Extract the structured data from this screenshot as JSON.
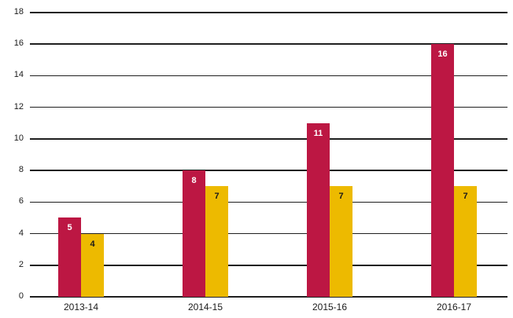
{
  "chart_data": {
    "type": "bar",
    "title": "",
    "xlabel": "",
    "ylabel": "",
    "categories": [
      "2013-14",
      "2014-15",
      "2015-16",
      "2016-17"
    ],
    "series": [
      {
        "name": "red",
        "color": "#BC1743",
        "label_color": "#FFFFFF",
        "values": [
          5,
          8,
          11,
          16
        ]
      },
      {
        "name": "yellow",
        "color": "#EDBA00",
        "label_color": "#1A1A1A",
        "values": [
          4,
          7,
          7,
          7
        ]
      }
    ],
    "ylim": [
      0,
      18
    ],
    "yticks": [
      0,
      2,
      4,
      6,
      8,
      10,
      12,
      14,
      16,
      18
    ],
    "grid": "horizontal",
    "gridline_color": "#1F1F1F",
    "axis_label_color": "#1A1A1A",
    "background": "#FFFFFF",
    "legend": "none",
    "bar_labels": true
  }
}
